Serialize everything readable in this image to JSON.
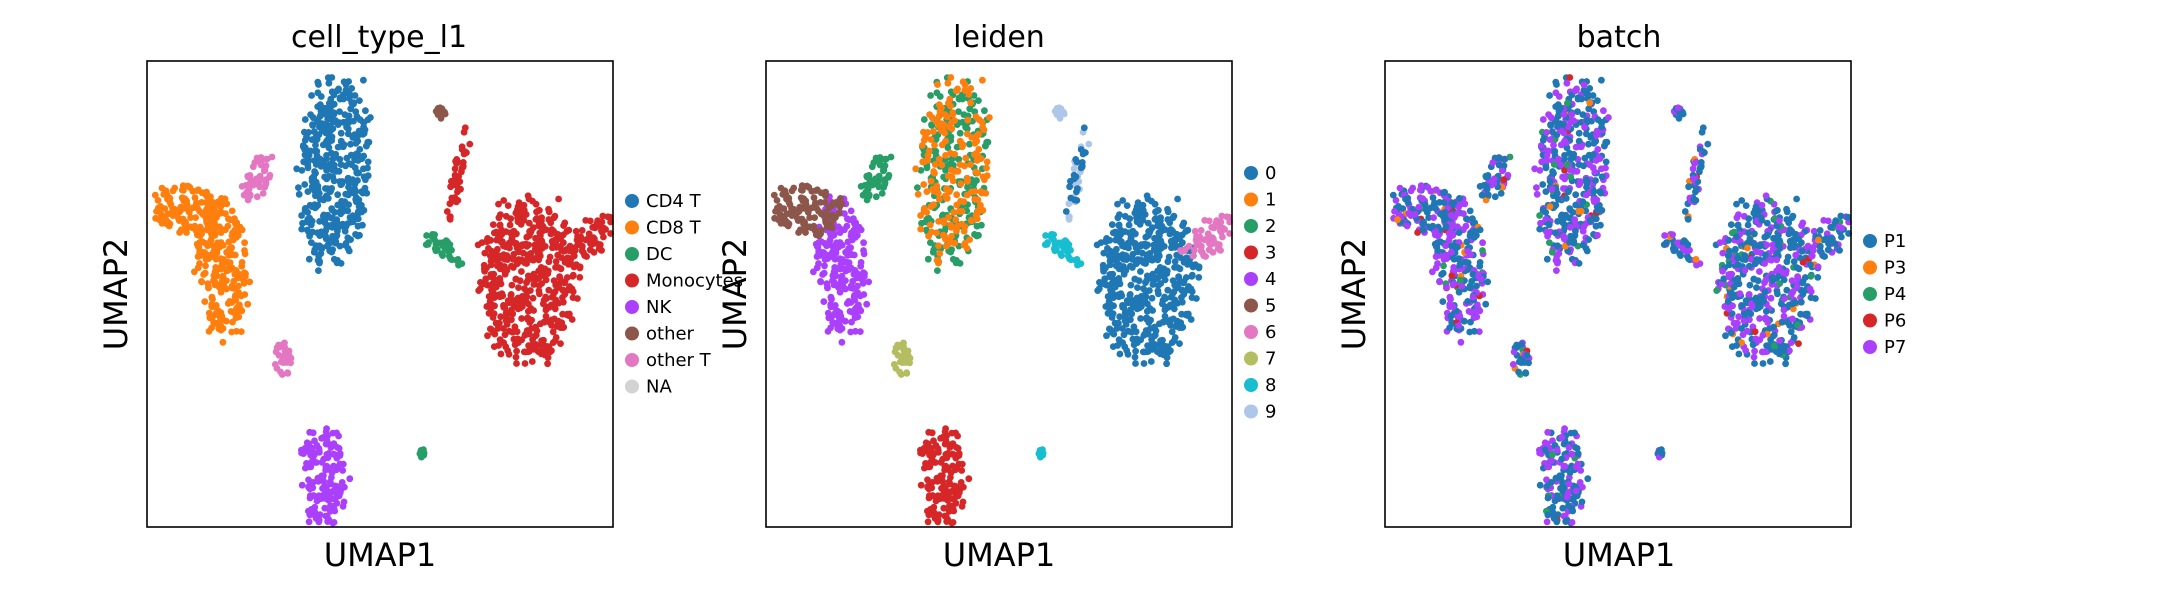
{
  "chart_data": [
    {
      "type": "scatter",
      "title": "cell_type_l1",
      "xlabel": "UMAP1",
      "ylabel": "UMAP2",
      "ticks": "none",
      "legend_placement": "right",
      "legend": [
        {
          "label": "CD4 T",
          "color": "#1f77b4"
        },
        {
          "label": "CD8 T",
          "color": "#ff7f0e"
        },
        {
          "label": "DC",
          "color": "#279e68"
        },
        {
          "label": "Monocytes",
          "color": "#d62728"
        },
        {
          "label": "NK",
          "color": "#aa40fc"
        },
        {
          "label": "other",
          "color": "#8c564b"
        },
        {
          "label": "other T",
          "color": "#e377c2"
        },
        {
          "label": "NA",
          "color": "#d3d3d3"
        }
      ],
      "clusters": [
        {
          "category": "CD4 T",
          "x": 4.0,
          "y": 7.6
        },
        {
          "category": "CD8 T",
          "x": 1.6,
          "y": 5.6
        },
        {
          "category": "NK",
          "x": 3.8,
          "y": 1.0
        },
        {
          "category": "Monocytes",
          "x": 8.2,
          "y": 5.3
        },
        {
          "category": "DC",
          "x": 6.4,
          "y": 6.0
        },
        {
          "category": "other",
          "x": 6.3,
          "y": 8.8
        },
        {
          "category": "other T",
          "x": 2.4,
          "y": 7.5
        }
      ]
    },
    {
      "type": "scatter",
      "title": "leiden",
      "xlabel": "UMAP1",
      "ylabel": "UMAP2",
      "ticks": "none",
      "legend_placement": "right",
      "legend": [
        {
          "label": "0",
          "color": "#1f77b4"
        },
        {
          "label": "1",
          "color": "#ff7f0e"
        },
        {
          "label": "2",
          "color": "#279e68"
        },
        {
          "label": "3",
          "color": "#d62728"
        },
        {
          "label": "4",
          "color": "#aa40fc"
        },
        {
          "label": "5",
          "color": "#8c564b"
        },
        {
          "label": "6",
          "color": "#e377c2"
        },
        {
          "label": "7",
          "color": "#b5bd61"
        },
        {
          "label": "8",
          "color": "#17becf"
        },
        {
          "label": "9",
          "color": "#aec7e8"
        }
      ],
      "clusters": [
        {
          "category": "0",
          "x": 8.2,
          "y": 5.3
        },
        {
          "category": "1",
          "x": 3.8,
          "y": 6.0
        },
        {
          "category": "2",
          "x": 3.4,
          "y": 8.6
        },
        {
          "category": "3",
          "x": 3.7,
          "y": 1.4
        },
        {
          "category": "4",
          "x": 2.0,
          "y": 4.5
        },
        {
          "category": "5",
          "x": 0.6,
          "y": 6.8
        },
        {
          "category": "6",
          "x": 9.2,
          "y": 6.2
        },
        {
          "category": "7",
          "x": 2.9,
          "y": 3.7
        },
        {
          "category": "8",
          "x": 5.8,
          "y": 6.1
        },
        {
          "category": "9",
          "x": 6.4,
          "y": 8.8
        }
      ]
    },
    {
      "type": "scatter",
      "title": "batch",
      "xlabel": "UMAP1",
      "ylabel": "UMAP2",
      "ticks": "none",
      "legend_placement": "right",
      "legend": [
        {
          "label": "P1",
          "color": "#1f77b4"
        },
        {
          "label": "P3",
          "color": "#ff7f0e"
        },
        {
          "label": "P4",
          "color": "#279e68"
        },
        {
          "label": "P6",
          "color": "#d62728"
        },
        {
          "label": "P7",
          "color": "#aa40fc"
        }
      ]
    }
  ]
}
